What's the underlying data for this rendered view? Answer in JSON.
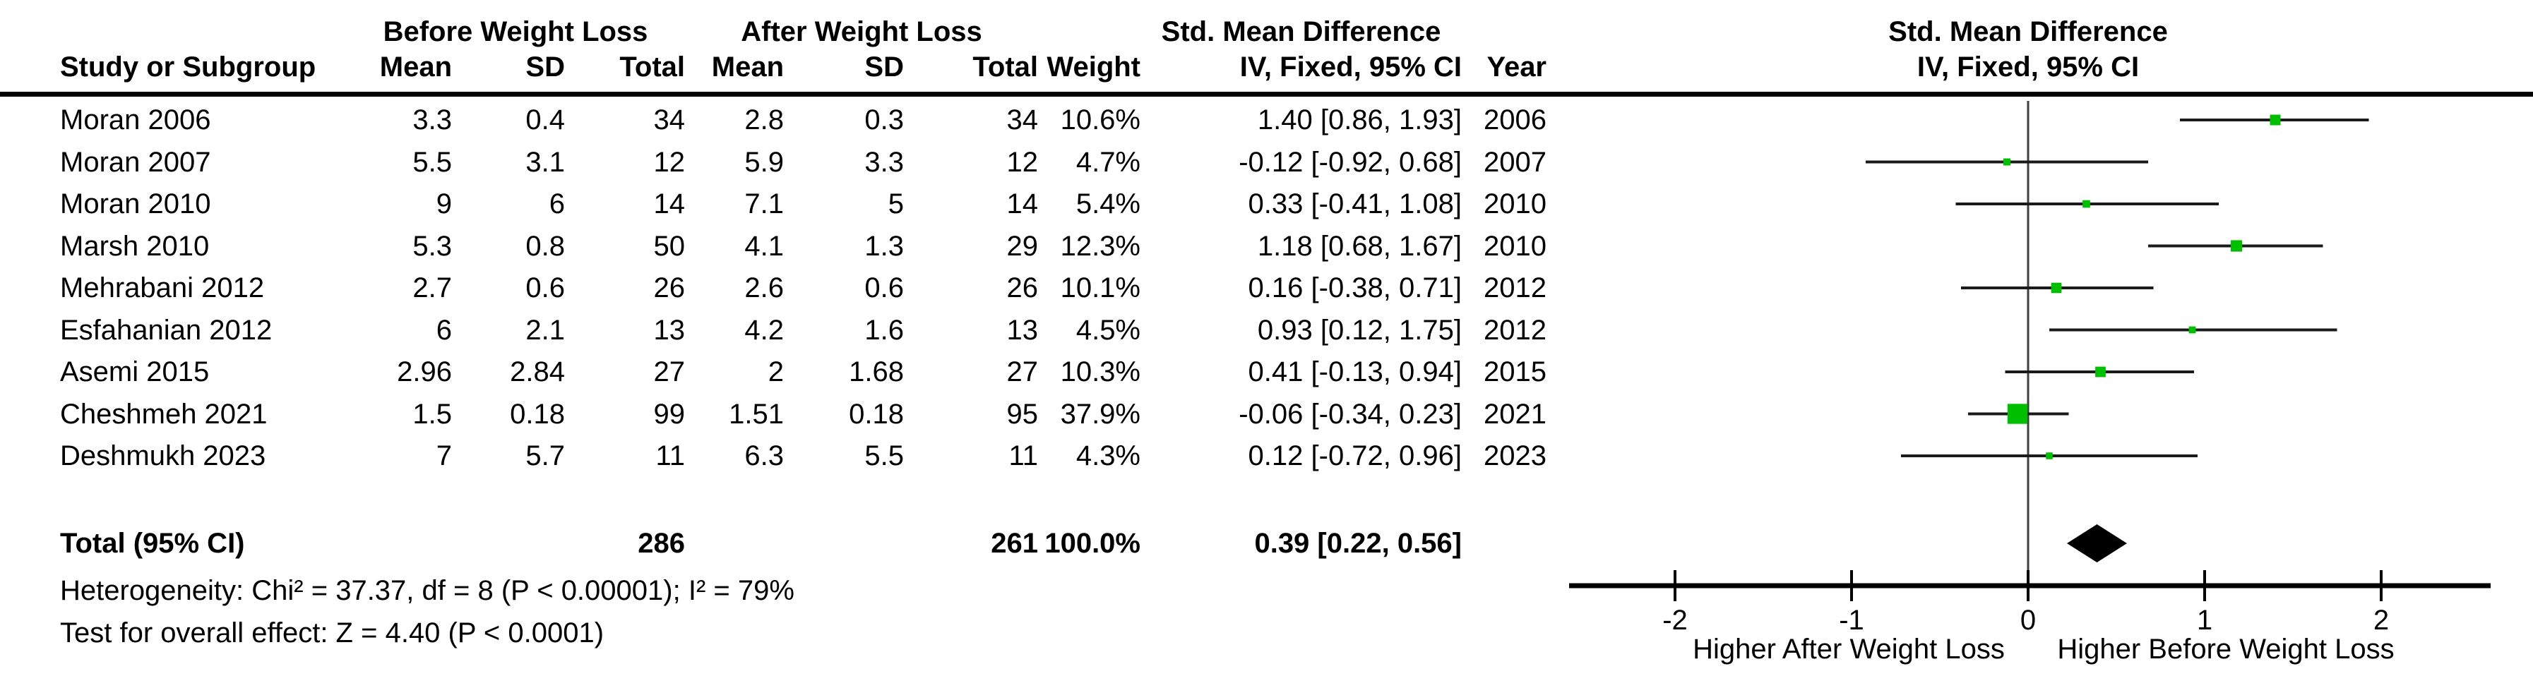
{
  "table": {
    "headers": {
      "group_before": "Before Weight Loss",
      "group_after": "After Weight Loss",
      "smd_table_line1": "Std. Mean Difference",
      "smd_table_line2": "IV, Fixed, 95% CI",
      "smd_plot_line1": "Std. Mean Difference",
      "smd_plot_line2": "IV, Fixed, 95% CI",
      "study": "Study or Subgroup",
      "mean_before": "Mean",
      "sd_before": "SD",
      "total_before": "Total",
      "mean_after": "Mean",
      "sd_after": "SD",
      "total_after": "Total",
      "weight": "Weight",
      "year": "Year"
    },
    "rows": [
      {
        "study": "Moran 2006",
        "mean1": "3.3",
        "sd1": "0.4",
        "total1": "34",
        "mean2": "2.8",
        "sd2": "0.3",
        "total2": "34",
        "weight": "10.6%",
        "ci": "1.40 [0.86, 1.93]",
        "year": "2006"
      },
      {
        "study": "Moran 2007",
        "mean1": "5.5",
        "sd1": "3.1",
        "total1": "12",
        "mean2": "5.9",
        "sd2": "3.3",
        "total2": "12",
        "weight": "4.7%",
        "ci": "-0.12 [-0.92, 0.68]",
        "year": "2007"
      },
      {
        "study": "Moran 2010",
        "mean1": "9",
        "sd1": "6",
        "total1": "14",
        "mean2": "7.1",
        "sd2": "5",
        "total2": "14",
        "weight": "5.4%",
        "ci": "0.33 [-0.41, 1.08]",
        "year": "2010"
      },
      {
        "study": "Marsh 2010",
        "mean1": "5.3",
        "sd1": "0.8",
        "total1": "50",
        "mean2": "4.1",
        "sd2": "1.3",
        "total2": "29",
        "weight": "12.3%",
        "ci": "1.18 [0.68, 1.67]",
        "year": "2010"
      },
      {
        "study": "Mehrabani 2012",
        "mean1": "2.7",
        "sd1": "0.6",
        "total1": "26",
        "mean2": "2.6",
        "sd2": "0.6",
        "total2": "26",
        "weight": "10.1%",
        "ci": "0.16 [-0.38, 0.71]",
        "year": "2012"
      },
      {
        "study": "Esfahanian 2012",
        "mean1": "6",
        "sd1": "2.1",
        "total1": "13",
        "mean2": "4.2",
        "sd2": "1.6",
        "total2": "13",
        "weight": "4.5%",
        "ci": "0.93 [0.12, 1.75]",
        "year": "2012"
      },
      {
        "study": "Asemi 2015",
        "mean1": "2.96",
        "sd1": "2.84",
        "total1": "27",
        "mean2": "2",
        "sd2": "1.68",
        "total2": "27",
        "weight": "10.3%",
        "ci": "0.41 [-0.13, 0.94]",
        "year": "2015"
      },
      {
        "study": "Cheshmeh 2021",
        "mean1": "1.5",
        "sd1": "0.18",
        "total1": "99",
        "mean2": "1.51",
        "sd2": "0.18",
        "total2": "95",
        "weight": "37.9%",
        "ci": "-0.06 [-0.34, 0.23]",
        "year": "2021"
      },
      {
        "study": "Deshmukh 2023",
        "mean1": "7",
        "sd1": "5.7",
        "total1": "11",
        "mean2": "6.3",
        "sd2": "5.5",
        "total2": "11",
        "weight": "4.3%",
        "ci": "0.12 [-0.72, 0.96]",
        "year": "2023"
      }
    ],
    "total_row": {
      "label": "Total (95% CI)",
      "total1": "286",
      "total2": "261",
      "weight": "100.0%",
      "ci": "0.39 [0.22, 0.56]"
    },
    "heterogeneity": "Heterogeneity: Chi² = 37.37, df = 8 (P < 0.00001); I² = 79%",
    "overall_effect": "Test for overall effect: Z = 4.40 (P < 0.0001)"
  },
  "chart_data": {
    "type": "forest",
    "title": "Std. Mean Difference",
    "model": "IV, Fixed, 95% CI",
    "studies": [
      "Moran 2006",
      "Moran 2007",
      "Moran 2010",
      "Marsh 2010",
      "Mehrabani 2012",
      "Esfahanian 2012",
      "Asemi 2015",
      "Cheshmeh 2021",
      "Deshmukh 2023"
    ],
    "estimates": [
      1.4,
      -0.12,
      0.33,
      1.18,
      0.16,
      0.93,
      0.41,
      -0.06,
      0.12
    ],
    "ci_low": [
      0.86,
      -0.92,
      -0.41,
      0.68,
      -0.38,
      0.12,
      -0.13,
      -0.34,
      -0.72
    ],
    "ci_high": [
      1.93,
      0.68,
      1.08,
      1.67,
      0.71,
      1.75,
      0.94,
      0.23,
      0.96
    ],
    "weights_pct": [
      10.6,
      4.7,
      5.4,
      12.3,
      10.1,
      4.5,
      10.3,
      37.9,
      4.3
    ],
    "total": {
      "estimate": 0.39,
      "ci_low": 0.22,
      "ci_high": 0.56
    },
    "axis": {
      "ticks": [
        -2,
        -1,
        0,
        1,
        2
      ],
      "xmin": -2.6,
      "xmax": 2.62
    },
    "xlabel_left": "Higher After Weight Loss",
    "xlabel_right": "Higher Before Weight Loss",
    "marker_color": "#00be00",
    "ci_line_color": "#1a1a1a",
    "diamond_color": "#000000"
  }
}
